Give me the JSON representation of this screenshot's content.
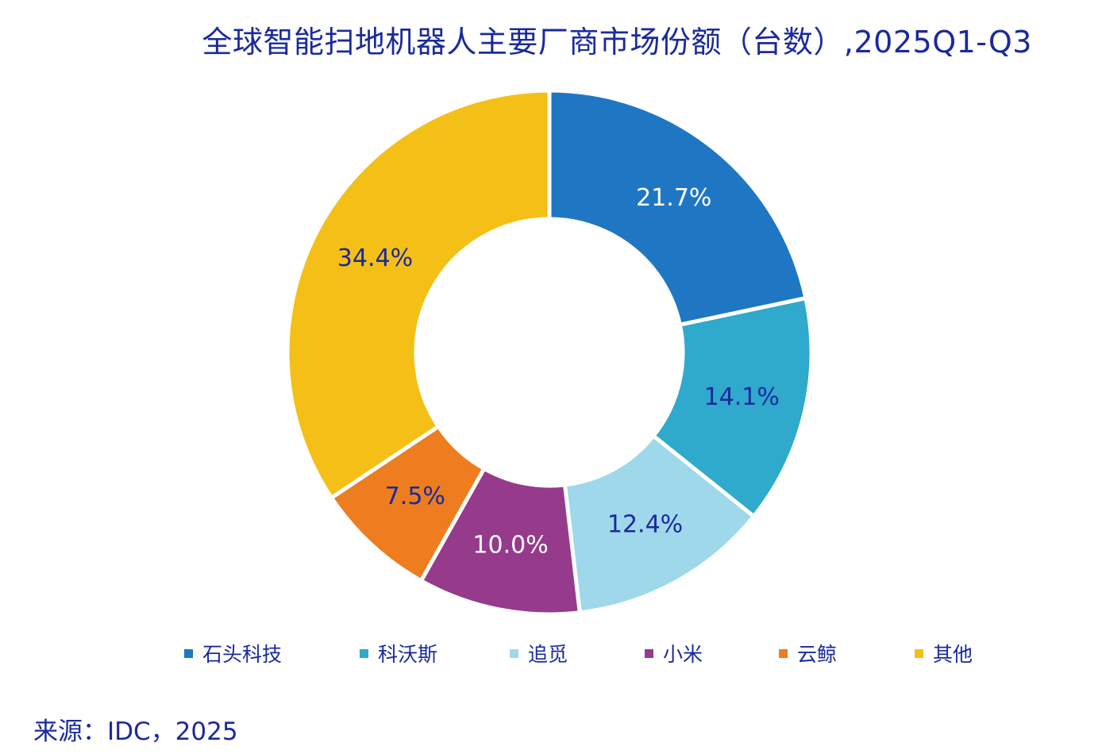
{
  "chart_data": {
    "type": "pie",
    "donut": true,
    "title": "全球智能扫地机器人主要厂商市场份额（台数）,2025Q1-Q3",
    "categories": [
      "石头科技",
      "科沃斯",
      "追觅",
      "小米",
      "云鲸",
      "其他"
    ],
    "values": [
      21.7,
      14.1,
      12.4,
      10.0,
      7.5,
      34.4
    ],
    "value_labels": [
      "21.7%",
      "14.1%",
      "12.4%",
      "10.0%",
      "7.5%",
      "34.4%"
    ],
    "colors": [
      "#1f77c4",
      "#2fa9cc",
      "#9fd8ea",
      "#963a8c",
      "#ed7d1f",
      "#f4c018"
    ],
    "label_colors": [
      "#ffffff",
      "#1a2a9c",
      "#1a2a9c",
      "#ffffff",
      "#1a2a9c",
      "#1a2a9c"
    ],
    "legend_position": "bottom",
    "start": "12 o'clock",
    "direction": "clockwise"
  },
  "source": "来源：IDC，2025"
}
